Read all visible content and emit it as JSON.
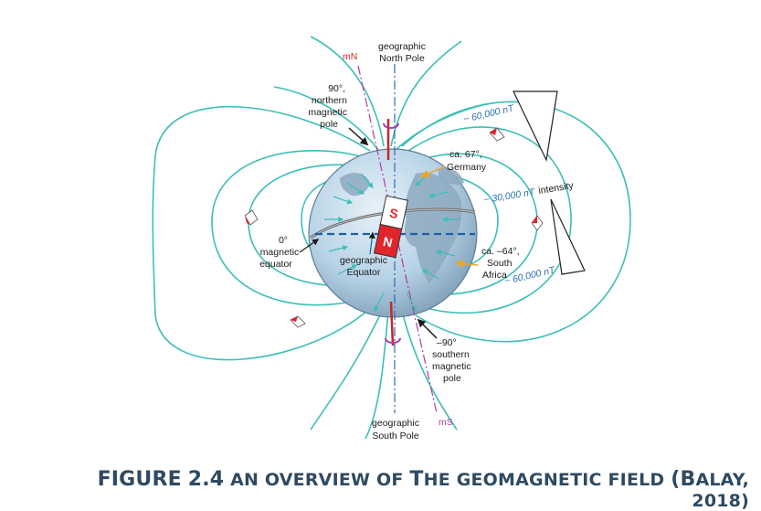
{
  "figure": {
    "labels": {
      "mN": "mN",
      "geo_north_1": "geographic",
      "geo_north_2": "North Pole",
      "north_mag_1": "90°,",
      "north_mag_2": "northern",
      "north_mag_3": "magnetic",
      "north_mag_4": "pole",
      "germany_1": "ca. 67°,",
      "germany_2": "Germany",
      "mag_eq_1": "0°",
      "mag_eq_2": "magnetic",
      "mag_eq_3": "equator",
      "geo_eq_1": "geographic",
      "geo_eq_2": "Equator",
      "sa_1": "ca. –64°,",
      "sa_2": "South",
      "sa_3": "Africa",
      "south_mag_1": "–90°",
      "south_mag_2": "southern",
      "south_mag_3": "magnetic",
      "south_mag_4": "pole",
      "geo_south_1": "geographic",
      "geo_south_2": "South Pole",
      "mS": "mS",
      "int_60_top": "~ 60,000 nT",
      "int_30": "~ 30,000 nT",
      "intensity": "intensity",
      "int_60_bottom": "~ 60,000 nT",
      "magnet_S": "S",
      "magnet_N": "N"
    },
    "colors": {
      "field_lines": "#3bbfb6",
      "globe": "#b7d3e6",
      "magnet_north": "#e1252d",
      "geographic_axis": "#2f6fb3",
      "magnetic_axis": "#b23aa5",
      "caption": "#2e4a63"
    }
  },
  "caption": {
    "figure_word": "FIGURE",
    "figure_number": "2.4",
    "text_1": "AN OVERVIEW OF",
    "text_2": "HE GEOMAGNETIC FIELD",
    "cap_T": "T",
    "paren_open": "(",
    "cap_B": "B",
    "text_3": "ALAY, 2018)"
  }
}
